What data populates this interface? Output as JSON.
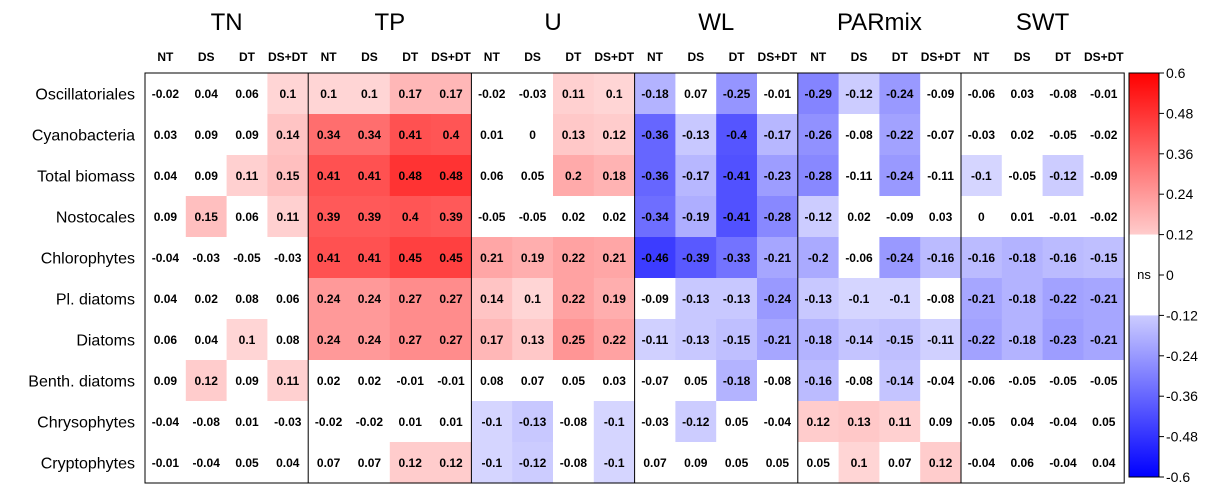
{
  "chart_data": {
    "type": "heatmap",
    "groups": [
      "TN",
      "TP",
      "U",
      "WL",
      "PARmix",
      "SWT"
    ],
    "subcolumns": [
      "NT",
      "DS",
      "DT",
      "DS+DT"
    ],
    "rows": [
      "Oscillatoriales",
      "Cyanobacteria",
      "Total biomass",
      "Nostocales",
      "Chlorophytes",
      "Pl. diatoms",
      "Diatoms",
      "Benth. diatoms",
      "Chrysophytes",
      "Cryptophytes"
    ],
    "values": [
      [
        -0.02,
        0.04,
        0.06,
        0.1,
        0.1,
        0.1,
        0.17,
        0.17,
        -0.02,
        -0.03,
        0.11,
        0.1,
        -0.18,
        0.07,
        -0.25,
        -0.01,
        -0.29,
        -0.12,
        -0.24,
        -0.09,
        -0.06,
        0.03,
        -0.08,
        -0.01
      ],
      [
        0.03,
        0.09,
        0.09,
        0.14,
        0.34,
        0.34,
        0.41,
        0.4,
        0.01,
        0,
        0.13,
        0.12,
        -0.36,
        -0.13,
        -0.4,
        -0.17,
        -0.26,
        -0.08,
        -0.22,
        -0.07,
        -0.03,
        0.02,
        -0.05,
        -0.02
      ],
      [
        0.04,
        0.09,
        0.11,
        0.15,
        0.41,
        0.41,
        0.48,
        0.48,
        0.06,
        0.05,
        0.2,
        0.18,
        -0.36,
        -0.17,
        -0.41,
        -0.23,
        -0.28,
        -0.11,
        -0.24,
        -0.11,
        -0.1,
        -0.05,
        -0.12,
        -0.09
      ],
      [
        0.09,
        0.15,
        0.06,
        0.11,
        0.39,
        0.39,
        0.4,
        0.39,
        -0.05,
        -0.05,
        0.02,
        0.02,
        -0.34,
        -0.19,
        -0.41,
        -0.28,
        -0.12,
        0.02,
        -0.09,
        0.03,
        0,
        0.01,
        -0.01,
        -0.02
      ],
      [
        -0.04,
        -0.03,
        -0.05,
        -0.03,
        0.41,
        0.41,
        0.45,
        0.45,
        0.21,
        0.19,
        0.22,
        0.21,
        -0.46,
        -0.39,
        -0.33,
        -0.21,
        -0.2,
        -0.06,
        -0.24,
        -0.16,
        -0.16,
        -0.18,
        -0.16,
        -0.15
      ],
      [
        0.04,
        0.02,
        0.08,
        0.06,
        0.24,
        0.24,
        0.27,
        0.27,
        0.14,
        0.1,
        0.22,
        0.19,
        -0.09,
        -0.13,
        -0.13,
        -0.24,
        -0.13,
        -0.1,
        -0.1,
        -0.08,
        -0.21,
        -0.18,
        -0.22,
        -0.21
      ],
      [
        0.06,
        0.04,
        0.1,
        0.08,
        0.24,
        0.24,
        0.27,
        0.27,
        0.17,
        0.13,
        0.25,
        0.22,
        -0.11,
        -0.13,
        -0.15,
        -0.21,
        -0.18,
        -0.14,
        -0.15,
        -0.11,
        -0.22,
        -0.18,
        -0.23,
        -0.21
      ],
      [
        0.09,
        0.12,
        0.09,
        0.11,
        0.02,
        0.02,
        -0.01,
        -0.01,
        0.08,
        0.07,
        0.05,
        0.03,
        -0.07,
        0.05,
        -0.18,
        -0.08,
        -0.16,
        -0.08,
        -0.14,
        -0.04,
        -0.06,
        -0.05,
        -0.05,
        -0.05
      ],
      [
        -0.04,
        -0.08,
        0.01,
        -0.03,
        -0.02,
        -0.02,
        0.01,
        0.01,
        -0.1,
        -0.13,
        -0.08,
        -0.1,
        -0.03,
        -0.12,
        0.05,
        -0.04,
        0.12,
        0.13,
        0.11,
        0.09,
        -0.05,
        0.04,
        -0.04,
        0.05
      ],
      [
        -0.01,
        -0.04,
        0.05,
        0.04,
        0.07,
        0.07,
        0.12,
        0.12,
        -0.1,
        -0.12,
        -0.08,
        -0.1,
        0.07,
        0.09,
        0.05,
        0.05,
        0.05,
        0.1,
        0.07,
        0.12,
        -0.04,
        0.06,
        -0.04,
        0.04
      ]
    ],
    "significant": [
      [
        0,
        0,
        0,
        1,
        1,
        1,
        1,
        1,
        0,
        0,
        1,
        1,
        1,
        0,
        1,
        0,
        1,
        1,
        1,
        0,
        0,
        0,
        0,
        0
      ],
      [
        0,
        0,
        0,
        1,
        1,
        1,
        1,
        1,
        0,
        0,
        1,
        1,
        1,
        1,
        1,
        1,
        1,
        0,
        1,
        0,
        0,
        0,
        0,
        0
      ],
      [
        0,
        0,
        1,
        1,
        1,
        1,
        1,
        1,
        0,
        0,
        1,
        1,
        1,
        1,
        1,
        1,
        1,
        0,
        1,
        0,
        1,
        0,
        1,
        0
      ],
      [
        0,
        1,
        0,
        1,
        1,
        1,
        1,
        1,
        0,
        0,
        0,
        0,
        1,
        1,
        1,
        1,
        1,
        0,
        0,
        0,
        0,
        0,
        0,
        0
      ],
      [
        0,
        0,
        0,
        0,
        1,
        1,
        1,
        1,
        1,
        1,
        1,
        1,
        1,
        1,
        1,
        1,
        1,
        0,
        1,
        1,
        1,
        1,
        1,
        1
      ],
      [
        0,
        0,
        0,
        0,
        1,
        1,
        1,
        1,
        1,
        1,
        1,
        1,
        0,
        1,
        1,
        1,
        1,
        1,
        1,
        0,
        1,
        1,
        1,
        1
      ],
      [
        0,
        0,
        1,
        0,
        1,
        1,
        1,
        1,
        1,
        1,
        1,
        1,
        1,
        1,
        1,
        1,
        1,
        1,
        1,
        1,
        1,
        1,
        1,
        1
      ],
      [
        0,
        1,
        0,
        1,
        0,
        0,
        0,
        0,
        0,
        0,
        0,
        0,
        0,
        0,
        1,
        0,
        1,
        0,
        1,
        0,
        0,
        0,
        0,
        0
      ],
      [
        0,
        0,
        0,
        0,
        0,
        0,
        0,
        0,
        1,
        1,
        0,
        1,
        0,
        1,
        0,
        0,
        1,
        1,
        1,
        0,
        0,
        0,
        0,
        0
      ],
      [
        0,
        0,
        0,
        0,
        0,
        0,
        1,
        1,
        1,
        1,
        0,
        1,
        0,
        0,
        0,
        0,
        0,
        1,
        0,
        1,
        0,
        0,
        0,
        0
      ]
    ],
    "colorbar": {
      "min": -0.6,
      "max": 0.6,
      "ticks": [
        "0.6",
        "0.48",
        "0.36",
        "0.24",
        "0.12",
        "0",
        "-0.12",
        "-0.24",
        "-0.36",
        "-0.48",
        "-0.6"
      ],
      "ns_label": "ns",
      "colors": {
        "positive": "#ff0000",
        "negative": "#0000ff",
        "neutral": "#ffffff"
      }
    }
  }
}
